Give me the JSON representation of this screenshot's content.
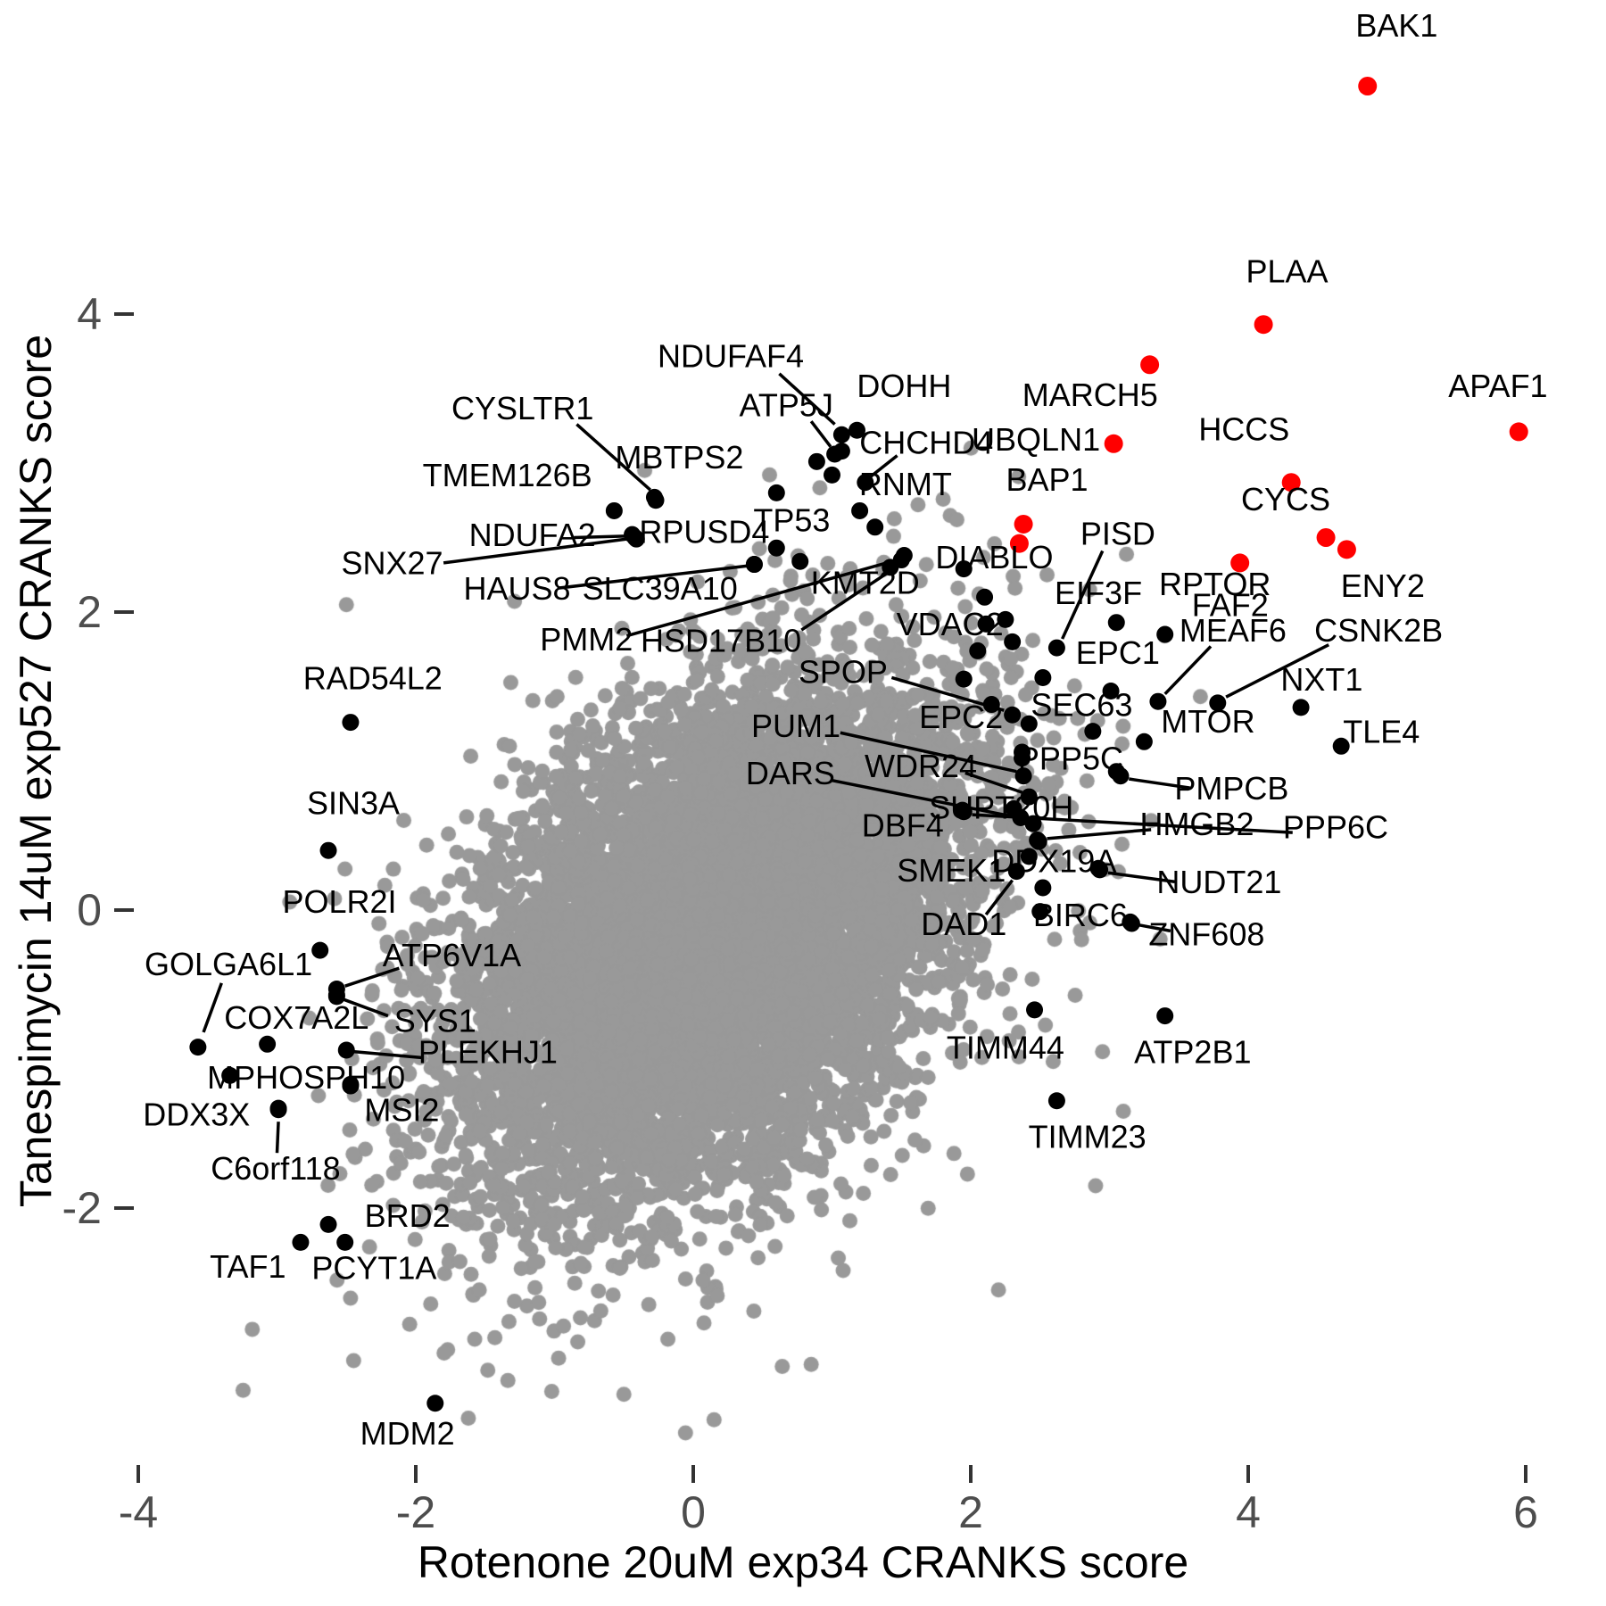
{
  "chart_data": {
    "type": "scatter",
    "title": "",
    "xlabel": "Rotenone 20uM exp34 CRANKS score",
    "ylabel": "Tanespimycin 14uM exp527 CRANKS score",
    "xlim": [
      -5.0,
      6.6
    ],
    "ylim": [
      -4.6,
      6.1
    ],
    "xticks": [
      -4,
      -2,
      0,
      2,
      4,
      6
    ],
    "yticks": [
      -2,
      0,
      2,
      4
    ],
    "grid": false,
    "legend": "none",
    "colors": {
      "background_points": "#999999",
      "labeled_points": "#000000",
      "hit_points": "#ff0000",
      "tick_label": "#4d4d4d",
      "tick_mark": "#333333",
      "axis_title": "#000000"
    },
    "background_cloud": {
      "n": 9000,
      "seed": 1337,
      "center": [
        0.12,
        -0.2
      ],
      "sd": [
        0.92,
        0.85
      ],
      "corr": 0.42,
      "point_radius": 8.5
    },
    "extra_gray_points": [
      [
        -0.5,
        -3.25
      ],
      [
        -1.02,
        -3.23
      ],
      [
        -1.43,
        -2.87
      ],
      [
        0.85,
        -3.05
      ],
      [
        0.15,
        -3.42
      ],
      [
        2.2,
        -2.55
      ],
      [
        2.9,
        -1.85
      ],
      [
        3.1,
        -1.35
      ],
      [
        -2.5,
        2.05
      ],
      [
        0.55,
        2.92
      ],
      [
        1.9,
        2.62
      ],
      [
        2.55,
        2.25
      ],
      [
        -0.35,
        2.95
      ],
      [
        1.62,
        2.72
      ],
      [
        3.3,
        0.6
      ],
      [
        2.95,
        -0.95
      ]
    ],
    "extra_black_points": [
      [
        1.07,
        3.08
      ],
      [
        0.89,
        3.01
      ],
      [
        1.0,
        2.92
      ],
      [
        0.6,
        2.8
      ],
      [
        1.31,
        2.57
      ],
      [
        0.77,
        2.34
      ],
      [
        2.42,
        1.25
      ],
      [
        2.3,
        1.8
      ],
      [
        2.1,
        2.1
      ],
      [
        2.25,
        1.95
      ],
      [
        2.05,
        1.74
      ],
      [
        2.52,
        1.56
      ],
      [
        1.95,
        1.55
      ],
      [
        2.15,
        1.38
      ],
      [
        2.37,
        1.02
      ],
      [
        2.36,
        0.62
      ],
      [
        2.52,
        0.15
      ],
      [
        2.5,
        -0.01
      ],
      [
        2.31,
        0.68
      ],
      [
        -2.47,
        -1.17
      ],
      [
        -2.57,
        -0.57
      ]
    ],
    "extra_red_points": [
      [
        2.35,
        2.46
      ]
    ],
    "labeled_points": [
      {
        "gene": "BAK1",
        "color": "red",
        "x": 4.86,
        "y": 5.53,
        "lx": 5.07,
        "ly": 5.92,
        "leader": null
      },
      {
        "gene": "PLAA",
        "color": "red",
        "x": 4.11,
        "y": 3.93,
        "lx": 4.28,
        "ly": 4.27,
        "leader": null
      },
      {
        "gene": "MARCH5",
        "color": "red",
        "x": 3.29,
        "y": 3.66,
        "lx": 2.86,
        "ly": 3.44,
        "leader": null
      },
      {
        "gene": "APAF1",
        "color": "red",
        "x": 5.95,
        "y": 3.21,
        "lx": 5.8,
        "ly": 3.5,
        "leader": null
      },
      {
        "gene": "UBQLN1",
        "color": "red",
        "x": 3.03,
        "y": 3.13,
        "lx": 2.47,
        "ly": 3.14,
        "leader": null
      },
      {
        "gene": "HCCS",
        "color": "red",
        "x": 4.31,
        "y": 2.87,
        "lx": 3.97,
        "ly": 3.21,
        "leader": null
      },
      {
        "gene": "CYCS",
        "color": "red",
        "x": 4.56,
        "y": 2.5,
        "lx": 4.27,
        "ly": 2.74,
        "leader": null
      },
      {
        "gene": "ENY2",
        "color": "red",
        "x": 4.71,
        "y": 2.42,
        "lx": 4.97,
        "ly": 2.16,
        "leader": null
      },
      {
        "gene": "FAF2",
        "color": "red",
        "x": 3.94,
        "y": 2.33,
        "lx": 3.87,
        "ly": 2.03,
        "leader": null
      },
      {
        "gene": "BAP1",
        "color": "red",
        "x": 2.38,
        "y": 2.59,
        "lx": 2.55,
        "ly": 2.87,
        "leader": null
      },
      {
        "gene": "NDUFAF4",
        "color": "black",
        "x": 1.07,
        "y": 3.19,
        "lx": 0.27,
        "ly": 3.7,
        "leader": [
          0.62,
          3.6,
          1.02,
          3.26
        ]
      },
      {
        "gene": "DOHH",
        "color": "black",
        "x": 1.18,
        "y": 3.22,
        "lx": 1.52,
        "ly": 3.5,
        "leader": null
      },
      {
        "gene": "ATP5J",
        "color": "black",
        "x": 1.02,
        "y": 3.06,
        "lx": 0.67,
        "ly": 3.37,
        "leader": [
          0.85,
          3.28,
          0.99,
          3.11
        ]
      },
      {
        "gene": "CHCHD4",
        "color": "black",
        "x": 1.24,
        "y": 2.87,
        "lx": 1.68,
        "ly": 3.12,
        "leader": [
          1.47,
          3.05,
          1.28,
          2.91
        ]
      },
      {
        "gene": "CYSLTR1",
        "color": "black",
        "x": -0.28,
        "y": 2.77,
        "lx": -1.23,
        "ly": 3.35,
        "leader": [
          -0.84,
          3.26,
          -0.31,
          2.82
        ]
      },
      {
        "gene": "MBTPS2",
        "color": "black",
        "x": -0.27,
        "y": 2.75,
        "lx": -0.1,
        "ly": 3.02,
        "leader": null
      },
      {
        "gene": "TMEM126B",
        "color": "black",
        "x": -0.57,
        "y": 2.68,
        "lx": -1.34,
        "ly": 2.9,
        "leader": null
      },
      {
        "gene": "RNMT",
        "color": "black",
        "x": 1.2,
        "y": 2.68,
        "lx": 1.53,
        "ly": 2.84,
        "leader": null
      },
      {
        "gene": "NDUFA2",
        "color": "black",
        "x": -0.44,
        "y": 2.52,
        "lx": -1.16,
        "ly": 2.5,
        "leader": [
          -0.86,
          2.5,
          -0.49,
          2.51
        ]
      },
      {
        "gene": "RPUSD4",
        "color": "black",
        "x": -0.42,
        "y": 2.5,
        "lx": 0.08,
        "ly": 2.52,
        "leader": null
      },
      {
        "gene": "TP53",
        "color": "black",
        "x": 0.6,
        "y": 2.43,
        "lx": 0.71,
        "ly": 2.6,
        "leader": null
      },
      {
        "gene": "SNX27",
        "color": "black",
        "x": -0.41,
        "y": 2.49,
        "lx": -2.17,
        "ly": 2.31,
        "leader": [
          -1.8,
          2.33,
          -0.48,
          2.49
        ]
      },
      {
        "gene": "HAUS8",
        "color": "black",
        "x": 0.44,
        "y": 2.32,
        "lx": -1.27,
        "ly": 2.14,
        "leader": [
          -0.98,
          2.16,
          0.39,
          2.31
        ]
      },
      {
        "gene": "SLC39A10",
        "color": "black",
        "x": 0.44,
        "y": 2.32,
        "lx": -0.24,
        "ly": 2.14,
        "leader": null
      },
      {
        "gene": "KMT2D",
        "color": "black",
        "x": 1.42,
        "y": 2.3,
        "lx": 1.24,
        "ly": 2.18,
        "leader": null
      },
      {
        "gene": "HSD17B10",
        "color": "black",
        "x": 1.5,
        "y": 2.35,
        "lx": 0.2,
        "ly": 1.79,
        "leader": [
          0.78,
          1.88,
          1.46,
          2.3
        ]
      },
      {
        "gene": "PMM2",
        "color": "black",
        "x": 1.52,
        "y": 2.38,
        "lx": -0.77,
        "ly": 1.8,
        "leader": [
          -0.48,
          1.84,
          1.47,
          2.35
        ]
      },
      {
        "gene": "VDAC2",
        "color": "black",
        "x": 2.11,
        "y": 1.92,
        "lx": 1.85,
        "ly": 1.9,
        "leader": null
      },
      {
        "gene": "DIABLO",
        "color": "black",
        "x": 1.95,
        "y": 2.29,
        "lx": 2.17,
        "ly": 2.35,
        "leader": null
      },
      {
        "gene": "PISD",
        "color": "black",
        "x": 2.62,
        "y": 1.76,
        "lx": 3.06,
        "ly": 2.51,
        "leader": [
          2.95,
          2.41,
          2.66,
          1.82
        ]
      },
      {
        "gene": "EIF3F",
        "color": "black",
        "x": 3.05,
        "y": 1.93,
        "lx": 2.92,
        "ly": 2.11,
        "leader": null
      },
      {
        "gene": "RPTOR",
        "color": "black",
        "x": 3.4,
        "y": 1.85,
        "lx": 3.76,
        "ly": 2.17,
        "leader": null
      },
      {
        "gene": "MEAF6",
        "color": "black",
        "x": 3.35,
        "y": 1.4,
        "lx": 3.89,
        "ly": 1.86,
        "leader": [
          3.73,
          1.77,
          3.4,
          1.45
        ]
      },
      {
        "gene": "CSNK2B",
        "color": "black",
        "x": 3.78,
        "y": 1.39,
        "lx": 4.94,
        "ly": 1.86,
        "leader": [
          4.58,
          1.78,
          3.84,
          1.43
        ]
      },
      {
        "gene": "SPOP",
        "color": "black",
        "x": 2.3,
        "y": 1.31,
        "lx": 1.08,
        "ly": 1.58,
        "leader": [
          1.43,
          1.56,
          2.24,
          1.34
        ]
      },
      {
        "gene": "EPC1",
        "color": "black",
        "x": 3.01,
        "y": 1.47,
        "lx": 3.06,
        "ly": 1.71,
        "leader": null
      },
      {
        "gene": "NXT1",
        "color": "black",
        "x": 4.38,
        "y": 1.36,
        "lx": 4.53,
        "ly": 1.53,
        "leader": null
      },
      {
        "gene": "SEC63",
        "color": "black",
        "x": 2.88,
        "y": 1.2,
        "lx": 2.8,
        "ly": 1.36,
        "leader": null
      },
      {
        "gene": "MTOR",
        "color": "black",
        "x": 3.25,
        "y": 1.13,
        "lx": 3.71,
        "ly": 1.25,
        "leader": null
      },
      {
        "gene": "TLE4",
        "color": "black",
        "x": 4.67,
        "y": 1.1,
        "lx": 4.96,
        "ly": 1.18,
        "leader": null
      },
      {
        "gene": "EPC2",
        "color": "black",
        "x": 2.37,
        "y": 1.06,
        "lx": 1.93,
        "ly": 1.28,
        "leader": null
      },
      {
        "gene": "PUM1",
        "color": "black",
        "x": 2.38,
        "y": 0.9,
        "lx": 0.74,
        "ly": 1.22,
        "leader": [
          1.06,
          1.19,
          2.33,
          0.93
        ]
      },
      {
        "gene": "WDR24",
        "color": "black",
        "x": 2.42,
        "y": 0.76,
        "lx": 1.64,
        "ly": 0.95,
        "leader": [
          1.96,
          0.92,
          2.37,
          0.79
        ]
      },
      {
        "gene": "DARS",
        "color": "black",
        "x": 2.45,
        "y": 0.58,
        "lx": 0.7,
        "ly": 0.9,
        "leader": [
          1.0,
          0.87,
          2.4,
          0.61
        ]
      },
      {
        "gene": "RAD54L2",
        "color": "black",
        "x": -2.47,
        "y": 1.26,
        "lx": -2.31,
        "ly": 1.54,
        "leader": null
      },
      {
        "gene": "SIN3A",
        "color": "black",
        "x": -2.63,
        "y": 0.4,
        "lx": -2.45,
        "ly": 0.7,
        "leader": null
      },
      {
        "gene": "SUPT20H",
        "color": "black",
        "x": 2.48,
        "y": 0.47,
        "lx": 2.22,
        "ly": 0.67,
        "leader": null
      },
      {
        "gene": "HMGB2",
        "color": "black",
        "x": 2.49,
        "y": 0.46,
        "lx": 3.63,
        "ly": 0.56,
        "leader": [
          3.3,
          0.54,
          2.55,
          0.48
        ]
      },
      {
        "gene": "PPP6C",
        "color": "black",
        "x": 1.95,
        "y": 0.66,
        "lx": 4.63,
        "ly": 0.54,
        "leader": [
          4.32,
          0.52,
          2.01,
          0.64
        ]
      },
      {
        "gene": "DBF4",
        "color": "black",
        "x": 1.94,
        "y": 0.67,
        "lx": 1.51,
        "ly": 0.55,
        "leader": null
      },
      {
        "gene": "PPP5C",
        "color": "black",
        "x": 3.05,
        "y": 0.93,
        "lx": 2.72,
        "ly": 1.0,
        "leader": null
      },
      {
        "gene": "PMPCB",
        "color": "black",
        "x": 3.08,
        "y": 0.9,
        "lx": 3.88,
        "ly": 0.8,
        "leader": [
          3.58,
          0.82,
          3.14,
          0.88
        ]
      },
      {
        "gene": "SMEK1",
        "color": "black",
        "x": 2.42,
        "y": 0.36,
        "lx": 1.86,
        "ly": 0.25,
        "leader": null
      },
      {
        "gene": "DDX19A",
        "color": "black",
        "x": 2.92,
        "y": 0.28,
        "lx": 2.6,
        "ly": 0.31,
        "leader": null
      },
      {
        "gene": "NUDT21",
        "color": "black",
        "x": 2.93,
        "y": 0.27,
        "lx": 3.79,
        "ly": 0.17,
        "leader": [
          3.47,
          0.19,
          2.99,
          0.25
        ]
      },
      {
        "gene": "DAD1",
        "color": "black",
        "x": 2.33,
        "y": 0.26,
        "lx": 1.95,
        "ly": -0.11,
        "leader": [
          2.11,
          -0.03,
          2.3,
          0.2
        ]
      },
      {
        "gene": "BIRC6",
        "color": "black",
        "x": 3.15,
        "y": -0.08,
        "lx": 2.79,
        "ly": -0.05,
        "leader": null
      },
      {
        "gene": "ZNF608",
        "color": "black",
        "x": 3.16,
        "y": -0.09,
        "lx": 3.7,
        "ly": -0.18,
        "leader": [
          3.44,
          -0.14,
          3.21,
          -0.1
        ]
      },
      {
        "gene": "TIMM44",
        "color": "black",
        "x": 2.46,
        "y": -0.67,
        "lx": 2.25,
        "ly": -0.94,
        "leader": null
      },
      {
        "gene": "ATP2B1",
        "color": "black",
        "x": 3.4,
        "y": -0.71,
        "lx": 3.6,
        "ly": -0.97,
        "leader": null
      },
      {
        "gene": "TIMM23",
        "color": "black",
        "x": 2.62,
        "y": -1.28,
        "lx": 2.84,
        "ly": -1.54,
        "leader": null
      },
      {
        "gene": "POLR2I",
        "color": "black",
        "x": -2.69,
        "y": -0.27,
        "lx": -2.55,
        "ly": 0.04,
        "leader": null
      },
      {
        "gene": "GOLGA6L1",
        "color": "black",
        "x": -3.57,
        "y": -0.92,
        "lx": -3.35,
        "ly": -0.38,
        "leader": [
          -3.4,
          -0.49,
          -3.53,
          -0.82
        ]
      },
      {
        "gene": "ATP6V1A",
        "color": "black",
        "x": -2.57,
        "y": -0.53,
        "lx": -1.74,
        "ly": -0.32,
        "leader": [
          -2.12,
          -0.39,
          -2.51,
          -0.51
        ]
      },
      {
        "gene": "COX7A2L",
        "color": "black",
        "x": -3.07,
        "y": -0.9,
        "lx": -2.86,
        "ly": -0.74,
        "leader": null
      },
      {
        "gene": "SYS1",
        "color": "black",
        "x": -2.57,
        "y": -0.58,
        "lx": -1.86,
        "ly": -0.76,
        "leader": [
          -2.2,
          -0.71,
          -2.52,
          -0.6
        ]
      },
      {
        "gene": "MPHOSPH10",
        "color": "black",
        "x": -3.34,
        "y": -1.11,
        "lx": -2.79,
        "ly": -1.14,
        "leader": null
      },
      {
        "gene": "PLEKHJ1",
        "color": "black",
        "x": -2.5,
        "y": -0.94,
        "lx": -1.48,
        "ly": -0.97,
        "leader": [
          -1.96,
          -0.99,
          -2.45,
          -0.95
        ]
      },
      {
        "gene": "MSI2",
        "color": "black",
        "x": -2.47,
        "y": -1.18,
        "lx": -2.1,
        "ly": -1.36,
        "leader": null
      },
      {
        "gene": "DDX3X",
        "color": "black",
        "x": -2.99,
        "y": -1.33,
        "lx": -3.58,
        "ly": -1.39,
        "leader": null
      },
      {
        "gene": "C6orf118",
        "color": "black",
        "x": -2.99,
        "y": -1.34,
        "lx": -3.01,
        "ly": -1.75,
        "leader": [
          -3.0,
          -1.63,
          -2.99,
          -1.42
        ]
      },
      {
        "gene": "BRD2",
        "color": "black",
        "x": -2.63,
        "y": -2.11,
        "lx": -2.06,
        "ly": -2.07,
        "leader": null
      },
      {
        "gene": "TAF1",
        "color": "black",
        "x": -2.83,
        "y": -2.23,
        "lx": -3.21,
        "ly": -2.41,
        "leader": null
      },
      {
        "gene": "PCYT1A",
        "color": "black",
        "x": -2.51,
        "y": -2.23,
        "lx": -2.3,
        "ly": -2.42,
        "leader": null
      },
      {
        "gene": "MDM2",
        "color": "black",
        "x": -1.86,
        "y": -3.31,
        "lx": -2.06,
        "ly": -3.53,
        "leader": null
      }
    ]
  }
}
